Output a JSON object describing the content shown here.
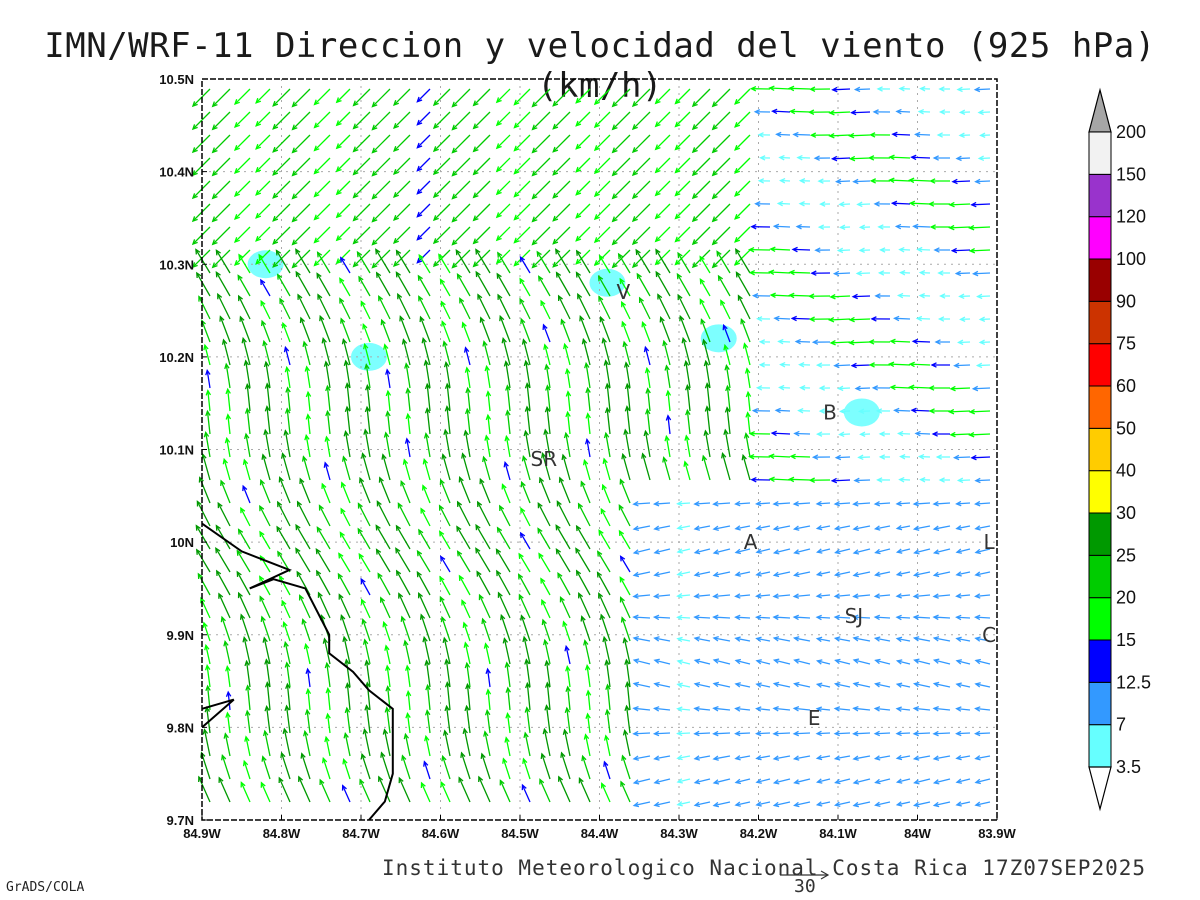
{
  "header": {
    "title": "IMN/WRF-11 Direccion y velocidad del viento (925 hPa)(km/h)"
  },
  "footer": {
    "credit": "Instituto Meteorologico Nacional Costa Rica 17Z07SEP2025",
    "software": "GrADS/COLA",
    "reference_vector": "30"
  },
  "cities": [
    "V",
    "SR",
    "B",
    "A",
    "SJ",
    "C",
    "E",
    "L"
  ],
  "colorbar": {
    "labels": [
      "3.5",
      "7",
      "12.5",
      "15",
      "20",
      "25",
      "30",
      "40",
      "50",
      "60",
      "75",
      "90",
      "100",
      "120",
      "150",
      "200"
    ],
    "colors": [
      "#66ffff",
      "#3399ff",
      "#0000ff",
      "#00ff00",
      "#00cc00",
      "#009900",
      "#ffff00",
      "#ffcc00",
      "#ff6600",
      "#ff0000",
      "#cc3300",
      "#990000",
      "#ff00ff",
      "#9933cc",
      "#f2f2f2",
      "#a6a6a6"
    ]
  },
  "chart_data": {
    "type": "vector-field",
    "title": "IMN/WRF-11 Direccion y velocidad del viento (925 hPa)(km/h)",
    "xlim": [
      -84.9,
      -83.9
    ],
    "ylim": [
      9.7,
      10.5
    ],
    "xticks": [
      "84.9W",
      "84.8W",
      "84.7W",
      "84.6W",
      "84.5W",
      "84.4W",
      "84.3W",
      "84.2W",
      "84.1W",
      "84W",
      "83.9W"
    ],
    "yticks": [
      "9.7N",
      "9.8N",
      "9.9N",
      "10N",
      "10.1N",
      "10.2N",
      "10.3N",
      "10.4N",
      "10.5N"
    ],
    "grid": true,
    "units": "km/h",
    "level": "925 hPa",
    "valid_time": "17Z07SEP2025",
    "cities": [
      {
        "label": "V",
        "lon": -84.37,
        "lat": 10.27
      },
      {
        "label": "SR",
        "lon": -84.47,
        "lat": 10.09
      },
      {
        "label": "B",
        "lon": -84.11,
        "lat": 10.14
      },
      {
        "label": "A",
        "lon": -84.21,
        "lat": 10.0
      },
      {
        "label": "SJ",
        "lon": -84.08,
        "lat": 9.92
      },
      {
        "label": "C",
        "lon": -83.91,
        "lat": 9.9
      },
      {
        "label": "E",
        "lon": -84.13,
        "lat": 9.81
      },
      {
        "label": "L",
        "lon": -83.91,
        "lat": 10.0
      }
    ],
    "coastline": [
      [
        -84.9,
        10.02
      ],
      [
        -84.85,
        9.99
      ],
      [
        -84.82,
        9.98
      ],
      [
        -84.79,
        9.97
      ],
      [
        -84.84,
        9.95
      ],
      [
        -84.81,
        9.96
      ],
      [
        -84.77,
        9.95
      ],
      [
        -84.74,
        9.9
      ],
      [
        -84.74,
        9.88
      ],
      [
        -84.71,
        9.86
      ],
      [
        -84.69,
        9.84
      ],
      [
        -84.66,
        9.82
      ],
      [
        -84.66,
        9.75
      ],
      [
        -84.67,
        9.72
      ],
      [
        -84.69,
        9.7
      ]
    ],
    "coastline_w": [
      [
        -84.9,
        9.82
      ],
      [
        -84.86,
        9.83
      ],
      [
        -84.9,
        9.8
      ]
    ],
    "calm_areas": [
      {
        "lon": -84.82,
        "lat": 10.3
      },
      {
        "lon": -84.69,
        "lat": 10.2
      },
      {
        "lon": -84.39,
        "lat": 10.28
      },
      {
        "lon": -84.25,
        "lat": 10.22
      },
      {
        "lon": -84.07,
        "lat": 10.14
      }
    ]
  }
}
